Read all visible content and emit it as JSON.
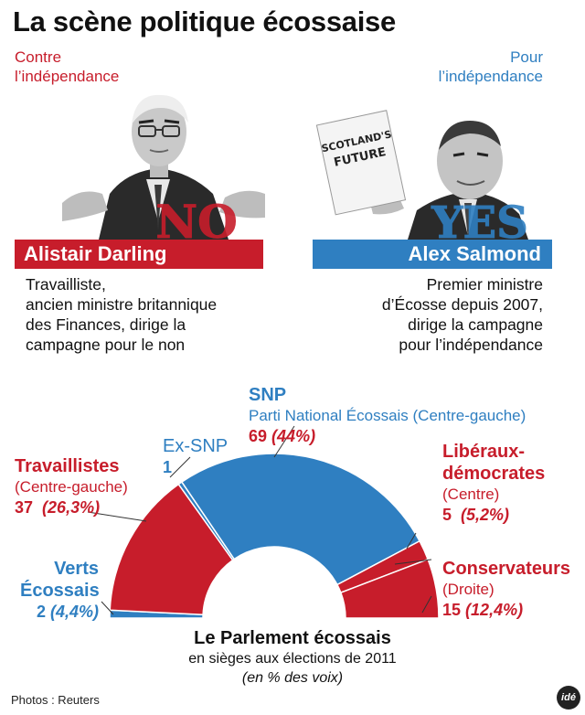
{
  "title": "La scène politique écossaise",
  "left": {
    "stance_line1": "Contre",
    "stance_line2": "l’indépendance",
    "stamp": "NO",
    "name": "Alistair Darling",
    "desc": [
      "Travailliste,",
      "ancien ministre britannique",
      "des Finances, dirige la",
      "campagne pour le non"
    ]
  },
  "right": {
    "stance_line1": "Pour",
    "stance_line2": "l’indépendance",
    "stamp": "YES",
    "book_text": "SCOTLAND'S FUTURE",
    "name": "Alex Salmond",
    "desc": [
      "Premier ministre",
      "d’Écosse depuis 2007,",
      "dirige la campagne",
      "pour l’indépendance"
    ]
  },
  "colors": {
    "red": "#c71d2b",
    "blue": "#2f7fc1",
    "dark": "#111111"
  },
  "parliament": {
    "title": "Le Parlement écossais",
    "subtitle": "en sièges aux élections de 2011",
    "note": "(en % des voix)"
  },
  "chart_data": {
    "type": "pie",
    "subtype": "hemicycle",
    "total_seats": 129,
    "series": [
      {
        "name": "Verts Écossais",
        "sub": "",
        "seats": 2,
        "seats_label": "2",
        "pct_label": "(4,4%)",
        "color": "#2f7fc1"
      },
      {
        "name": "Travaillistes",
        "sub": "(Centre-gauche)",
        "seats": 37,
        "seats_label": "37",
        "pct_label": "(26,3%)",
        "color": "#c71d2b"
      },
      {
        "name": "Ex-SNP",
        "sub": "",
        "seats": 1,
        "seats_label": "1",
        "pct_label": "",
        "color": "#2f7fc1"
      },
      {
        "name": "SNP",
        "sub": "Parti National Écossais (Centre-gauche)",
        "seats": 69,
        "seats_label": "69",
        "pct_label": "(44%)",
        "color": "#2f7fc1"
      },
      {
        "name": "Libéraux-démocrates",
        "name_line1": "Libéraux-",
        "name_line2": "démocrates",
        "sub": "(Centre)",
        "seats": 5,
        "seats_label": "5",
        "pct_label": "(5,2%)",
        "color": "#c71d2b"
      },
      {
        "name": "Conservateurs",
        "sub": "(Droite)",
        "seats": 15,
        "seats_label": "15",
        "pct_label": "(12,4%)",
        "color": "#c71d2b"
      }
    ]
  },
  "credit": "Photos : Reuters",
  "logo": "idé"
}
